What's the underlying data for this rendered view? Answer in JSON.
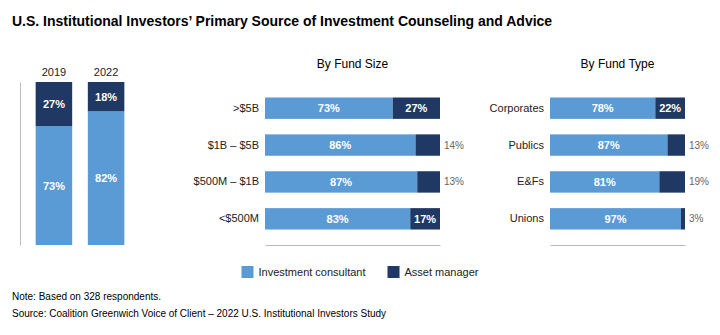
{
  "chart_data": [
    {
      "type": "bar",
      "title": "U.S. Institutional Investors’ Primary Source of Investment Counseling and Advice",
      "annotations": [
        "Note: Based on 328 respondents.",
        "Source: Coalition Greenwich Voice of Client – 2022 U.S. Institutional Investors Study"
      ],
      "categories": [
        "2019",
        "2022"
      ],
      "series": [
        {
          "name": "Investment consultant",
          "color": "#5B9BD5",
          "values": [
            73,
            82
          ],
          "value_labels": [
            "73%",
            "82%"
          ]
        },
        {
          "name": "Asset manager",
          "color": "#1F3864",
          "values": [
            27,
            18
          ],
          "value_labels": [
            "27%",
            "18%"
          ]
        }
      ],
      "stacked": true,
      "data_labels": true,
      "ylim": [
        0,
        100
      ],
      "tick_labels": "x"
    },
    {
      "type": "bar",
      "title": "By Fund Size",
      "orientation": "horizontal",
      "categories": [
        ">$5B",
        "$1B – $5B",
        "$500M – $1B",
        "<$500M"
      ],
      "series": [
        {
          "name": "Investment consultant",
          "color": "#5B9BD5",
          "values": [
            73,
            86,
            87,
            83
          ],
          "value_labels": [
            "73%",
            "86%",
            "87%",
            "83%"
          ]
        },
        {
          "name": "Asset manager",
          "color": "#1F3864",
          "values": [
            27,
            14,
            13,
            17
          ],
          "value_labels": [
            "27%",
            "14%",
            "13%",
            "17%"
          ]
        }
      ],
      "stacked": true,
      "data_labels": true,
      "xlim": [
        0,
        100
      ],
      "tick_labels": "y"
    },
    {
      "type": "bar",
      "title": "By Fund Type",
      "orientation": "horizontal",
      "categories": [
        "Corporates",
        "Publics",
        "E&Fs",
        "Unions"
      ],
      "series": [
        {
          "name": "Investment consultant",
          "color": "#5B9BD5",
          "values": [
            78,
            87,
            81,
            97
          ],
          "value_labels": [
            "78%",
            "87%",
            "81%",
            "97%"
          ]
        },
        {
          "name": "Asset manager",
          "color": "#1F3864",
          "values": [
            22,
            13,
            19,
            3
          ],
          "value_labels": [
            "22%",
            "13%",
            "19%",
            "3%"
          ]
        }
      ],
      "stacked": true,
      "data_labels": true,
      "xlim": [
        0,
        100
      ],
      "tick_labels": "y"
    }
  ]
}
